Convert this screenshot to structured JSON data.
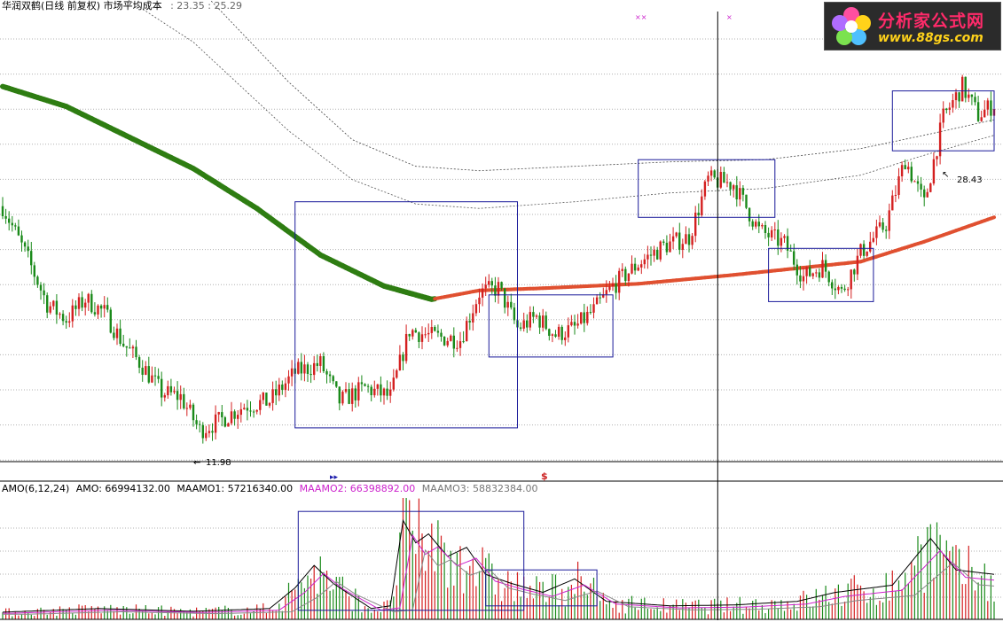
{
  "header": {
    "stock_name": "华润双鹤(日线 前复权)",
    "indicator_name": "市场平均成本",
    "values_text": ": 23.35 : 25.29"
  },
  "lower_header": {
    "indicator": "AMO(6,12,24)",
    "amo": "AMO: 66994132.00",
    "maamo1": "MAAMO1: 57216340.00",
    "maamo2": "MAAMO2: 66398892.00",
    "maamo3": "MAAMO3: 58832384.00"
  },
  "logo": {
    "title": "分析家公式网",
    "url": "www.88gs.com"
  },
  "markers": {
    "low_label": "11.98",
    "high_label": "28.43",
    "dollar": "$"
  },
  "colors": {
    "up": "#d42020",
    "down": "#1a8a1a",
    "avg_cost_down": "#2e7d12",
    "avg_cost_up": "#e05030",
    "box": "#1a1a9a",
    "maamo1": "#000000",
    "maamo2": "#cc22cc",
    "maamo3": "#888888"
  },
  "chart_data": [
    {
      "type": "candlestick",
      "title": "华润双鹤(日线 前复权) 市场平均成本",
      "price_range": [
        11.0,
        31.5
      ],
      "grid": true,
      "low_point": 11.98,
      "high_point": 28.43,
      "price_path": [
        {
          "i": 0,
          "p": 22.4
        },
        {
          "i": 8,
          "p": 20.0
        },
        {
          "i": 14,
          "p": 18.0
        },
        {
          "i": 20,
          "p": 17.3
        },
        {
          "i": 26,
          "p": 18.2
        },
        {
          "i": 32,
          "p": 17.6
        },
        {
          "i": 38,
          "p": 16.2
        },
        {
          "i": 44,
          "p": 15.2
        },
        {
          "i": 50,
          "p": 14.0
        },
        {
          "i": 56,
          "p": 13.8
        },
        {
          "i": 62,
          "p": 12.3
        },
        {
          "i": 68,
          "p": 12.7
        },
        {
          "i": 76,
          "p": 13.4
        },
        {
          "i": 84,
          "p": 13.6
        },
        {
          "i": 92,
          "p": 14.9
        },
        {
          "i": 100,
          "p": 15.3
        },
        {
          "i": 106,
          "p": 13.6
        },
        {
          "i": 114,
          "p": 14.2
        },
        {
          "i": 122,
          "p": 13.8
        },
        {
          "i": 128,
          "p": 16.8
        },
        {
          "i": 136,
          "p": 16.5
        },
        {
          "i": 144,
          "p": 16.4
        },
        {
          "i": 150,
          "p": 18.5
        },
        {
          "i": 156,
          "p": 18.7
        },
        {
          "i": 162,
          "p": 16.9
        },
        {
          "i": 168,
          "p": 17.4
        },
        {
          "i": 174,
          "p": 16.6
        },
        {
          "i": 180,
          "p": 16.9
        },
        {
          "i": 186,
          "p": 17.7
        },
        {
          "i": 192,
          "p": 18.8
        },
        {
          "i": 200,
          "p": 19.8
        },
        {
          "i": 208,
          "p": 20.6
        },
        {
          "i": 216,
          "p": 21.0
        },
        {
          "i": 222,
          "p": 23.6
        },
        {
          "i": 230,
          "p": 23.4
        },
        {
          "i": 238,
          "p": 21.3
        },
        {
          "i": 246,
          "p": 20.7
        },
        {
          "i": 252,
          "p": 19.2
        },
        {
          "i": 258,
          "p": 19.7
        },
        {
          "i": 264,
          "p": 18.5
        },
        {
          "i": 270,
          "p": 20.3
        },
        {
          "i": 278,
          "p": 21.6
        },
        {
          "i": 284,
          "p": 24.5
        },
        {
          "i": 290,
          "p": 22.5
        },
        {
          "i": 296,
          "p": 26.4
        },
        {
          "i": 302,
          "p": 27.8
        },
        {
          "i": 307,
          "p": 26.5
        },
        {
          "i": 312,
          "p": 27.0
        }
      ],
      "series": [
        {
          "name": "市场平均成本",
          "points": [
            {
              "i": 0,
              "p": 27.8
            },
            {
              "i": 20,
              "p": 26.9
            },
            {
              "i": 40,
              "p": 25.5
            },
            {
              "i": 60,
              "p": 24.1
            },
            {
              "i": 80,
              "p": 22.3
            },
            {
              "i": 100,
              "p": 20.2
            },
            {
              "i": 120,
              "p": 18.8
            },
            {
              "i": 135,
              "p": 18.2
            },
            {
              "i": 150,
              "p": 18.6
            },
            {
              "i": 170,
              "p": 18.7
            },
            {
              "i": 200,
              "p": 18.9
            },
            {
              "i": 230,
              "p": 19.3
            },
            {
              "i": 250,
              "p": 19.6
            },
            {
              "i": 270,
              "p": 19.9
            },
            {
              "i": 290,
              "p": 20.8
            },
            {
              "i": 312,
              "p": 21.9
            }
          ]
        },
        {
          "name": "",
          "points": [
            {
              "i": 0,
              "p": 36.0
            },
            {
              "i": 30,
              "p": 35.0
            },
            {
              "i": 60,
              "p": 32.5
            },
            {
              "i": 90,
              "p": 28.0
            },
            {
              "i": 110,
              "p": 25.4
            },
            {
              "i": 130,
              "p": 24.2
            },
            {
              "i": 150,
              "p": 24.0
            },
            {
              "i": 180,
              "p": 24.2
            },
            {
              "i": 210,
              "p": 24.4
            },
            {
              "i": 240,
              "p": 24.5
            },
            {
              "i": 270,
              "p": 25.0
            },
            {
              "i": 290,
              "p": 25.6
            },
            {
              "i": 312,
              "p": 26.3
            }
          ]
        },
        {
          "name": "",
          "points": [
            {
              "i": 0,
              "p": 33.8
            },
            {
              "i": 30,
              "p": 32.6
            },
            {
              "i": 60,
              "p": 29.8
            },
            {
              "i": 90,
              "p": 25.8
            },
            {
              "i": 110,
              "p": 23.6
            },
            {
              "i": 130,
              "p": 22.5
            },
            {
              "i": 150,
              "p": 22.3
            },
            {
              "i": 180,
              "p": 22.6
            },
            {
              "i": 210,
              "p": 23.0
            },
            {
              "i": 240,
              "p": 23.2
            },
            {
              "i": 270,
              "p": 23.8
            },
            {
              "i": 290,
              "p": 24.7
            },
            {
              "i": 312,
              "p": 25.6
            }
          ]
        }
      ],
      "boxes": [
        {
          "i0": 92,
          "i1": 162,
          "p_top": 22.6,
          "p_bot": 12.4
        },
        {
          "i0": 153,
          "i1": 192,
          "p_top": 18.4,
          "p_bot": 15.6
        },
        {
          "i0": 200,
          "i1": 243,
          "p_top": 24.5,
          "p_bot": 21.9
        },
        {
          "i0": 241,
          "i1": 274,
          "p_top": 20.5,
          "p_bot": 18.1
        },
        {
          "i0": 280,
          "i1": 312,
          "p_top": 27.6,
          "p_bot": 24.9
        }
      ],
      "cursor_index": 225
    },
    {
      "type": "bar",
      "title": "AMO(6,12,24)",
      "y_range": [
        0,
        135000000
      ],
      "amo_current": 66994132.0,
      "maamo1_current": 57216340.0,
      "maamo2_current": 66398892.0,
      "maamo3_current": 58832384.0,
      "amo_path": [
        {
          "i": 0,
          "p": 8000000
        },
        {
          "i": 30,
          "p": 12000000
        },
        {
          "i": 60,
          "p": 9000000
        },
        {
          "i": 84,
          "p": 12000000
        },
        {
          "i": 92,
          "p": 35000000
        },
        {
          "i": 98,
          "p": 60000000
        },
        {
          "i": 104,
          "p": 40000000
        },
        {
          "i": 116,
          "p": 12000000
        },
        {
          "i": 122,
          "p": 15000000
        },
        {
          "i": 126,
          "p": 110000000
        },
        {
          "i": 130,
          "p": 85000000
        },
        {
          "i": 134,
          "p": 95000000
        },
        {
          "i": 140,
          "p": 70000000
        },
        {
          "i": 146,
          "p": 80000000
        },
        {
          "i": 152,
          "p": 50000000
        },
        {
          "i": 160,
          "p": 40000000
        },
        {
          "i": 170,
          "p": 30000000
        },
        {
          "i": 180,
          "p": 45000000
        },
        {
          "i": 190,
          "p": 20000000
        },
        {
          "i": 210,
          "p": 15000000
        },
        {
          "i": 230,
          "p": 16000000
        },
        {
          "i": 250,
          "p": 20000000
        },
        {
          "i": 262,
          "p": 30000000
        },
        {
          "i": 280,
          "p": 38000000
        },
        {
          "i": 292,
          "p": 90000000
        },
        {
          "i": 300,
          "p": 55000000
        },
        {
          "i": 312,
          "p": 50000000
        }
      ],
      "boxes": [
        {
          "i0": 93,
          "i1": 164,
          "p_top": 120000000,
          "p_bot": 10000000
        },
        {
          "i0": 152,
          "i1": 187,
          "p_top": 55000000,
          "p_bot": 15000000
        }
      ]
    }
  ]
}
